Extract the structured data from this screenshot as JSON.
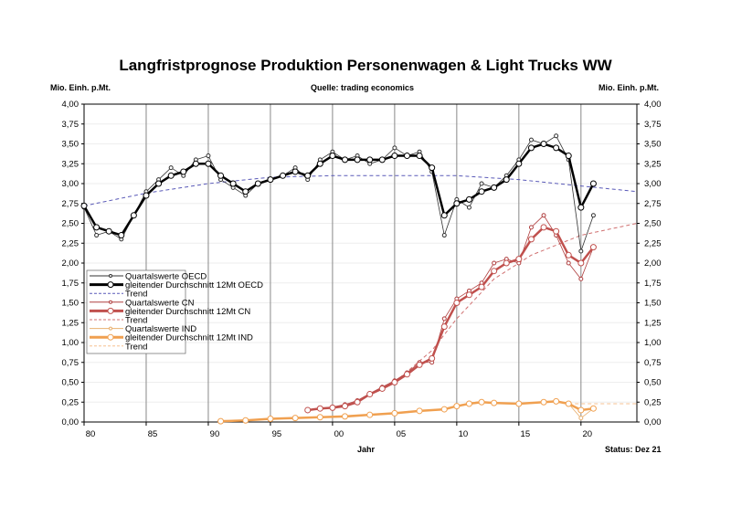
{
  "chart_data": {
    "type": "line",
    "title": "Langfristprognose Produktion Personenwagen & Light Trucks WW",
    "ylabel_left": "Mio. Einh. p.Mt.",
    "ylabel_right": "Mio. Einh. p.Mt.",
    "source": "Quelle: trading economics",
    "xlabel": "Jahr",
    "status": "Status: Dez 21",
    "xlim": [
      1980,
      2024.5
    ],
    "ylim": [
      0,
      4
    ],
    "grid": "vertical every 5 years, horizontal faint",
    "legend_position": "left-middle",
    "x_ticks": [
      {
        "v": 1980,
        "l": "80"
      },
      {
        "v": 1985,
        "l": "85"
      },
      {
        "v": 1990,
        "l": "90"
      },
      {
        "v": 1995,
        "l": "95"
      },
      {
        "v": 2000,
        "l": "00"
      },
      {
        "v": 2005,
        "l": "05"
      },
      {
        "v": 2010,
        "l": "10"
      },
      {
        "v": 2015,
        "l": "15"
      },
      {
        "v": 2020,
        "l": "20"
      }
    ],
    "y_ticks": [
      "0,00",
      "0,25",
      "0,50",
      "0,75",
      "1,00",
      "1,25",
      "1,50",
      "1,75",
      "2,00",
      "2,25",
      "2,50",
      "2,75",
      "3,00",
      "3,25",
      "3,50",
      "3,75",
      "4,00"
    ],
    "series": [
      {
        "name": "Quartalswerte OECD",
        "color": "#333333",
        "style": "thin-markers",
        "x": [
          1980,
          1981,
          1982,
          1983,
          1984,
          1985,
          1986,
          1987,
          1988,
          1989,
          1990,
          1991,
          1992,
          1993,
          1994,
          1995,
          1996,
          1997,
          1998,
          1999,
          2000,
          2001,
          2002,
          2003,
          2004,
          2005,
          2006,
          2007,
          2008,
          2009,
          2010,
          2011,
          2012,
          2013,
          2014,
          2015,
          2016,
          2017,
          2018,
          2019,
          2020,
          2021
        ],
        "y": [
          2.7,
          2.35,
          2.4,
          2.3,
          2.6,
          2.9,
          3.05,
          3.2,
          3.1,
          3.3,
          3.35,
          3.05,
          2.95,
          2.85,
          3.0,
          3.05,
          3.1,
          3.2,
          3.05,
          3.3,
          3.4,
          3.3,
          3.35,
          3.25,
          3.3,
          3.45,
          3.35,
          3.4,
          3.15,
          2.35,
          2.8,
          2.7,
          3.0,
          2.95,
          3.1,
          3.3,
          3.55,
          3.5,
          3.6,
          3.3,
          2.15,
          2.6
        ]
      },
      {
        "name": "gleitender Durchschnitt 12Mt OECD",
        "color": "#000000",
        "style": "thick-markers",
        "x": [
          1980,
          1981,
          1982,
          1983,
          1984,
          1985,
          1986,
          1987,
          1988,
          1989,
          1990,
          1991,
          1992,
          1993,
          1994,
          1995,
          1996,
          1997,
          1998,
          1999,
          2000,
          2001,
          2002,
          2003,
          2004,
          2005,
          2006,
          2007,
          2008,
          2009,
          2010,
          2011,
          2012,
          2013,
          2014,
          2015,
          2016,
          2017,
          2018,
          2019,
          2020,
          2021
        ],
        "y": [
          2.72,
          2.45,
          2.4,
          2.35,
          2.6,
          2.85,
          3.0,
          3.1,
          3.15,
          3.25,
          3.25,
          3.1,
          3.0,
          2.9,
          3.0,
          3.05,
          3.1,
          3.15,
          3.1,
          3.25,
          3.35,
          3.3,
          3.3,
          3.3,
          3.3,
          3.35,
          3.35,
          3.35,
          3.2,
          2.6,
          2.75,
          2.8,
          2.9,
          2.95,
          3.05,
          3.25,
          3.45,
          3.5,
          3.45,
          3.35,
          2.7,
          3.0
        ]
      },
      {
        "name": "Trend",
        "color": "#5a5ab8",
        "style": "dashed",
        "x": [
          1980,
          1985,
          1990,
          1995,
          2000,
          2005,
          2010,
          2015,
          2020,
          2024.5
        ],
        "y": [
          2.72,
          2.88,
          3.0,
          3.08,
          3.1,
          3.1,
          3.1,
          3.05,
          2.97,
          2.9
        ]
      },
      {
        "name": "Quartalswerte CN",
        "color": "#b04040",
        "style": "thin-markers",
        "x": [
          1998,
          1999,
          2000,
          2001,
          2002,
          2003,
          2004,
          2005,
          2006,
          2007,
          2008,
          2009,
          2010,
          2011,
          2012,
          2013,
          2014,
          2015,
          2016,
          2017,
          2018,
          2019,
          2020,
          2021
        ],
        "y": [
          0.15,
          0.17,
          0.19,
          0.22,
          0.27,
          0.36,
          0.44,
          0.52,
          0.62,
          0.75,
          0.75,
          1.3,
          1.55,
          1.65,
          1.75,
          2.0,
          2.05,
          2.0,
          2.45,
          2.6,
          2.35,
          2.0,
          1.8,
          2.2
        ]
      },
      {
        "name": "gleitender Durchschnitt 12Mt CN",
        "color": "#c0504d",
        "style": "thick-markers",
        "x": [
          1998,
          1999,
          2000,
          2001,
          2002,
          2003,
          2004,
          2005,
          2006,
          2007,
          2008,
          2009,
          2010,
          2011,
          2012,
          2013,
          2014,
          2015,
          2016,
          2017,
          2018,
          2019,
          2020,
          2021
        ],
        "y": [
          0.15,
          0.17,
          0.18,
          0.2,
          0.25,
          0.35,
          0.42,
          0.5,
          0.6,
          0.72,
          0.8,
          1.2,
          1.5,
          1.6,
          1.7,
          1.9,
          2.0,
          2.05,
          2.3,
          2.45,
          2.4,
          2.1,
          2.0,
          2.2
        ]
      },
      {
        "name": "Trend",
        "color": "#d07070",
        "style": "dashed",
        "x": [
          2005,
          2008,
          2010,
          2013,
          2016,
          2020,
          2024.5
        ],
        "y": [
          0.5,
          0.9,
          1.3,
          1.8,
          2.1,
          2.35,
          2.5
        ]
      },
      {
        "name": "Quartalswerte IND",
        "color": "#e8b070",
        "style": "thin-markers",
        "x": [
          1991,
          1993,
          1995,
          1997,
          1999,
          2001,
          2003,
          2005,
          2007,
          2009,
          2010,
          2011,
          2012,
          2013,
          2015,
          2017,
          2018,
          2019,
          2020,
          2021
        ],
        "y": [
          0.01,
          0.02,
          0.04,
          0.05,
          0.06,
          0.07,
          0.09,
          0.11,
          0.14,
          0.16,
          0.2,
          0.24,
          0.26,
          0.23,
          0.23,
          0.25,
          0.26,
          0.23,
          0.05,
          0.17
        ]
      },
      {
        "name": "gleitender Durchschnitt 12Mt IND",
        "color": "#f0a050",
        "style": "thick-markers",
        "x": [
          1991,
          1993,
          1995,
          1997,
          1999,
          2001,
          2003,
          2005,
          2007,
          2009,
          2010,
          2011,
          2012,
          2013,
          2015,
          2017,
          2018,
          2019,
          2020,
          2021
        ],
        "y": [
          0.01,
          0.02,
          0.04,
          0.05,
          0.06,
          0.07,
          0.09,
          0.11,
          0.14,
          0.16,
          0.2,
          0.23,
          0.25,
          0.24,
          0.23,
          0.25,
          0.26,
          0.23,
          0.15,
          0.17
        ]
      },
      {
        "name": "Trend",
        "color": "#f5c090",
        "style": "dashed",
        "x": [
          2019,
          2024.5
        ],
        "y": [
          0.23,
          0.23
        ]
      }
    ]
  }
}
